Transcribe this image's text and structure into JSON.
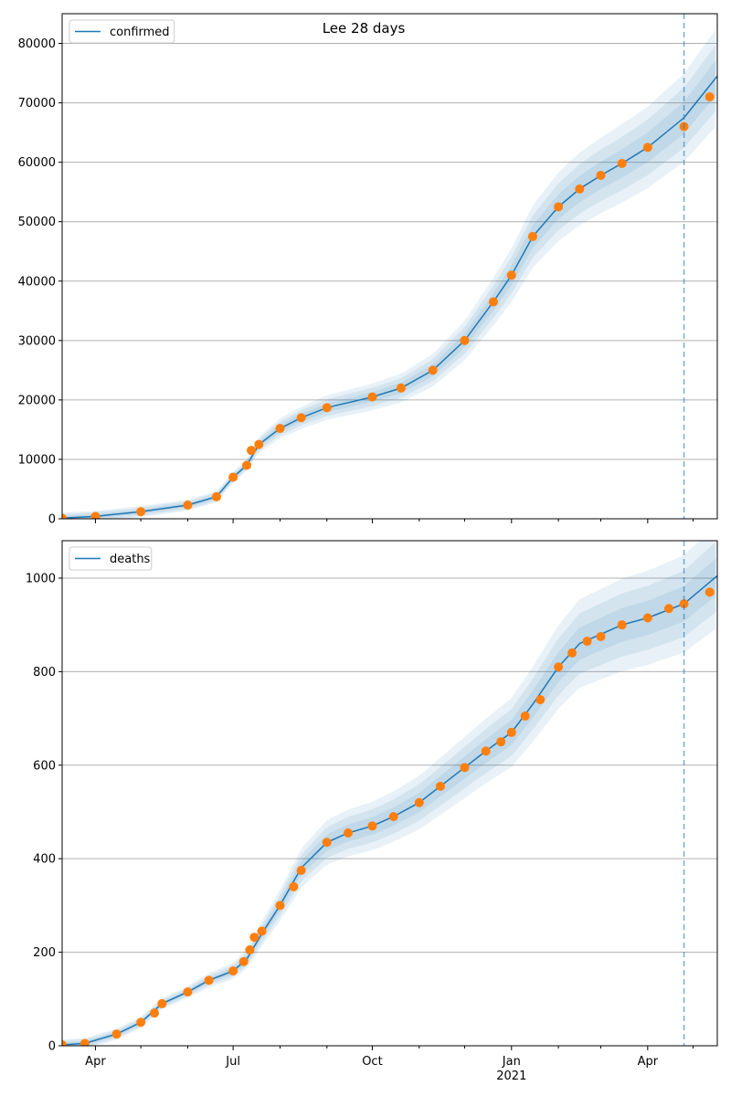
{
  "figure": {
    "title": "Lee 28 days"
  },
  "colors": {
    "model": "#1f77b4",
    "observed": "#ff7f0e",
    "band": "#1f77b4",
    "grid": "#b0b0b0",
    "forecast_line": "#1f77b4"
  },
  "x_axis": {
    "start": "2020-03-10",
    "end": "2021-05-17",
    "forecast_start": "2021-04-25",
    "major_ticks": [
      {
        "date": "2020-04-01",
        "label": "Apr"
      },
      {
        "date": "2020-07-01",
        "label": "Jul"
      },
      {
        "date": "2020-10-01",
        "label": "Oct"
      },
      {
        "date": "2021-01-01",
        "label": "Jan"
      },
      {
        "date": "2021-04-01",
        "label": "Apr"
      }
    ],
    "year_label": {
      "date": "2021-01-01",
      "label": "2021"
    },
    "minor_ticks": [
      "2020-05-01",
      "2020-06-01",
      "2020-08-01",
      "2020-09-01",
      "2020-11-01",
      "2020-12-01",
      "2021-02-01",
      "2021-03-01",
      "2021-05-01"
    ]
  },
  "chart_data": [
    {
      "type": "line",
      "legend": "confirmed",
      "legend_position": "top-left",
      "grid": "horizontal",
      "ylim": [
        0,
        85000
      ],
      "yticks": [
        0,
        10000,
        20000,
        30000,
        40000,
        50000,
        60000,
        70000,
        80000
      ],
      "ytick_labels": [
        "0",
        "10000",
        "20000",
        "30000",
        "40000",
        "50000",
        "60000",
        "70000",
        "80000"
      ],
      "model_points": [
        [
          "2020-03-10",
          100
        ],
        [
          "2020-04-01",
          400
        ],
        [
          "2020-05-01",
          1200
        ],
        [
          "2020-06-01",
          2300
        ],
        [
          "2020-06-20",
          3700
        ],
        [
          "2020-07-01",
          7000
        ],
        [
          "2020-07-10",
          9000
        ],
        [
          "2020-07-18",
          12500
        ],
        [
          "2020-08-01",
          15200
        ],
        [
          "2020-08-15",
          17000
        ],
        [
          "2020-09-01",
          18700
        ],
        [
          "2020-10-01",
          20500
        ],
        [
          "2020-10-20",
          22000
        ],
        [
          "2020-11-10",
          25000
        ],
        [
          "2020-12-01",
          30000
        ],
        [
          "2020-12-20",
          36500
        ],
        [
          "2021-01-01",
          41000
        ],
        [
          "2021-01-15",
          47500
        ],
        [
          "2021-02-01",
          52500
        ],
        [
          "2021-02-15",
          55500
        ],
        [
          "2021-03-01",
          57800
        ],
        [
          "2021-03-15",
          59800
        ],
        [
          "2021-04-01",
          62500
        ],
        [
          "2021-04-25",
          67500
        ],
        [
          "2021-05-17",
          74500
        ]
      ],
      "observed": [
        [
          "2020-03-10",
          100
        ],
        [
          "2020-04-01",
          400
        ],
        [
          "2020-05-01",
          1200
        ],
        [
          "2020-06-01",
          2300
        ],
        [
          "2020-06-20",
          3700
        ],
        [
          "2020-07-01",
          7000
        ],
        [
          "2020-07-10",
          9000
        ],
        [
          "2020-07-13",
          11500
        ],
        [
          "2020-07-18",
          12500
        ],
        [
          "2020-08-01",
          15200
        ],
        [
          "2020-08-15",
          17000
        ],
        [
          "2020-09-01",
          18700
        ],
        [
          "2020-10-01",
          20500
        ],
        [
          "2020-10-20",
          22000
        ],
        [
          "2020-11-10",
          25000
        ],
        [
          "2020-12-01",
          30000
        ],
        [
          "2020-12-20",
          36500
        ],
        [
          "2021-01-01",
          41000
        ],
        [
          "2021-01-15",
          47500
        ],
        [
          "2021-02-01",
          52500
        ],
        [
          "2021-02-15",
          55500
        ],
        [
          "2021-03-01",
          57800
        ],
        [
          "2021-03-15",
          59800
        ],
        [
          "2021-04-01",
          62500
        ],
        [
          "2021-04-25",
          66000
        ],
        [
          "2021-05-12",
          71000
        ]
      ]
    },
    {
      "type": "line",
      "legend": "deaths",
      "legend_position": "top-left",
      "grid": "horizontal",
      "ylim": [
        0,
        1080
      ],
      "yticks": [
        0,
        200,
        400,
        600,
        800,
        1000
      ],
      "ytick_labels": [
        "0",
        "200",
        "400",
        "600",
        "800",
        "1000"
      ],
      "model_points": [
        [
          "2020-03-10",
          2
        ],
        [
          "2020-03-25",
          5
        ],
        [
          "2020-04-15",
          25
        ],
        [
          "2020-05-01",
          50
        ],
        [
          "2020-05-15",
          90
        ],
        [
          "2020-06-01",
          115
        ],
        [
          "2020-06-15",
          140
        ],
        [
          "2020-07-01",
          160
        ],
        [
          "2020-07-10",
          185
        ],
        [
          "2020-07-20",
          240
        ],
        [
          "2020-08-01",
          300
        ],
        [
          "2020-08-15",
          380
        ],
        [
          "2020-09-01",
          435
        ],
        [
          "2020-09-15",
          455
        ],
        [
          "2020-10-01",
          470
        ],
        [
          "2020-10-15",
          490
        ],
        [
          "2020-11-01",
          520
        ],
        [
          "2020-11-15",
          555
        ],
        [
          "2020-12-01",
          595
        ],
        [
          "2020-12-15",
          630
        ],
        [
          "2021-01-01",
          670
        ],
        [
          "2021-01-15",
          730
        ],
        [
          "2021-02-01",
          810
        ],
        [
          "2021-02-15",
          860
        ],
        [
          "2021-03-01",
          880
        ],
        [
          "2021-03-15",
          900
        ],
        [
          "2021-04-01",
          915
        ],
        [
          "2021-04-25",
          945
        ],
        [
          "2021-05-17",
          1005
        ]
      ],
      "observed": [
        [
          "2020-03-10",
          2
        ],
        [
          "2020-03-25",
          5
        ],
        [
          "2020-04-15",
          25
        ],
        [
          "2020-05-01",
          50
        ],
        [
          "2020-05-10",
          70
        ],
        [
          "2020-05-15",
          90
        ],
        [
          "2020-06-01",
          115
        ],
        [
          "2020-06-15",
          140
        ],
        [
          "2020-07-01",
          160
        ],
        [
          "2020-07-08",
          180
        ],
        [
          "2020-07-12",
          205
        ],
        [
          "2020-07-15",
          232
        ],
        [
          "2020-07-20",
          245
        ],
        [
          "2020-08-01",
          300
        ],
        [
          "2020-08-10",
          340
        ],
        [
          "2020-08-15",
          375
        ],
        [
          "2020-09-01",
          435
        ],
        [
          "2020-09-15",
          455
        ],
        [
          "2020-10-01",
          470
        ],
        [
          "2020-10-15",
          490
        ],
        [
          "2020-11-01",
          520
        ],
        [
          "2020-11-15",
          555
        ],
        [
          "2020-12-01",
          595
        ],
        [
          "2020-12-15",
          630
        ],
        [
          "2020-12-25",
          650
        ],
        [
          "2021-01-01",
          670
        ],
        [
          "2021-01-10",
          705
        ],
        [
          "2021-01-20",
          740
        ],
        [
          "2021-02-01",
          810
        ],
        [
          "2021-02-10",
          840
        ],
        [
          "2021-02-20",
          865
        ],
        [
          "2021-03-01",
          875
        ],
        [
          "2021-03-15",
          900
        ],
        [
          "2021-04-01",
          915
        ],
        [
          "2021-04-15",
          935
        ],
        [
          "2021-04-25",
          945
        ],
        [
          "2021-05-12",
          970
        ]
      ]
    }
  ]
}
